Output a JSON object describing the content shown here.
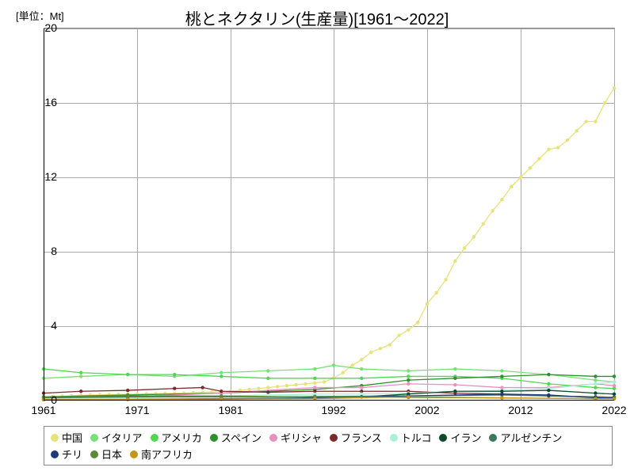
{
  "chart": {
    "type": "line",
    "title": "桃とネクタリン(生産量)[1961～2022]",
    "title_fontsize": 20,
    "unit_label": "[単位：Mt]",
    "label_fontsize": 13,
    "tick_fontsize": 14,
    "background_color": "#ffffff",
    "grid_color": "#aaaaaa",
    "xlim": [
      1961,
      2022
    ],
    "ylim": [
      0,
      20
    ],
    "yticks": [
      0,
      4,
      8,
      12,
      16,
      20
    ],
    "xticks": [
      1961,
      1971,
      1981,
      1992,
      2002,
      2012,
      2022
    ],
    "marker_radius": 2.2,
    "line_width": 1.3,
    "legend_fontsize": 13,
    "series": [
      {
        "name": "中国",
        "color": "#e8e27a",
        "data": [
          [
            1961,
            0.2
          ],
          [
            1962,
            0.22
          ],
          [
            1963,
            0.24
          ],
          [
            1964,
            0.26
          ],
          [
            1965,
            0.28
          ],
          [
            1966,
            0.3
          ],
          [
            1967,
            0.31
          ],
          [
            1968,
            0.32
          ],
          [
            1969,
            0.33
          ],
          [
            1970,
            0.34
          ],
          [
            1971,
            0.35
          ],
          [
            1972,
            0.36
          ],
          [
            1973,
            0.37
          ],
          [
            1974,
            0.38
          ],
          [
            1975,
            0.39
          ],
          [
            1976,
            0.4
          ],
          [
            1977,
            0.42
          ],
          [
            1978,
            0.44
          ],
          [
            1979,
            0.46
          ],
          [
            1980,
            0.48
          ],
          [
            1981,
            0.5
          ],
          [
            1982,
            0.55
          ],
          [
            1983,
            0.6
          ],
          [
            1984,
            0.65
          ],
          [
            1985,
            0.7
          ],
          [
            1986,
            0.75
          ],
          [
            1987,
            0.8
          ],
          [
            1988,
            0.85
          ],
          [
            1989,
            0.9
          ],
          [
            1990,
            0.95
          ],
          [
            1991,
            1.0
          ],
          [
            1992,
            1.2
          ],
          [
            1993,
            1.5
          ],
          [
            1994,
            1.9
          ],
          [
            1995,
            2.2
          ],
          [
            1996,
            2.6
          ],
          [
            1997,
            2.8
          ],
          [
            1998,
            3.0
          ],
          [
            1999,
            3.5
          ],
          [
            2000,
            3.8
          ],
          [
            2001,
            4.2
          ],
          [
            2002,
            5.2
          ],
          [
            2003,
            5.8
          ],
          [
            2004,
            6.5
          ],
          [
            2005,
            7.5
          ],
          [
            2006,
            8.2
          ],
          [
            2007,
            8.8
          ],
          [
            2008,
            9.5
          ],
          [
            2009,
            10.2
          ],
          [
            2010,
            10.8
          ],
          [
            2011,
            11.5
          ],
          [
            2012,
            12.0
          ],
          [
            2013,
            12.5
          ],
          [
            2014,
            13.0
          ],
          [
            2015,
            13.5
          ],
          [
            2016,
            13.6
          ],
          [
            2017,
            14.0
          ],
          [
            2018,
            14.5
          ],
          [
            2019,
            15.0
          ],
          [
            2020,
            15.0
          ],
          [
            2021,
            16.0
          ],
          [
            2022,
            16.8
          ]
        ]
      },
      {
        "name": "イタリア",
        "color": "#78e078",
        "data": [
          [
            1961,
            1.2
          ],
          [
            1965,
            1.3
          ],
          [
            1970,
            1.4
          ],
          [
            1975,
            1.3
          ],
          [
            1980,
            1.5
          ],
          [
            1985,
            1.6
          ],
          [
            1990,
            1.7
          ],
          [
            1992,
            1.9
          ],
          [
            1995,
            1.7
          ],
          [
            2000,
            1.6
          ],
          [
            2005,
            1.7
          ],
          [
            2010,
            1.6
          ],
          [
            2015,
            1.4
          ],
          [
            2020,
            1.1
          ],
          [
            2022,
            1.0
          ]
        ]
      },
      {
        "name": "アメリカ",
        "color": "#4fd84f",
        "data": [
          [
            1961,
            1.7
          ],
          [
            1965,
            1.5
          ],
          [
            1970,
            1.4
          ],
          [
            1975,
            1.4
          ],
          [
            1980,
            1.3
          ],
          [
            1985,
            1.2
          ],
          [
            1990,
            1.2
          ],
          [
            1995,
            1.2
          ],
          [
            2000,
            1.3
          ],
          [
            2005,
            1.3
          ],
          [
            2010,
            1.2
          ],
          [
            2015,
            0.9
          ],
          [
            2020,
            0.7
          ],
          [
            2022,
            0.65
          ]
        ]
      },
      {
        "name": "スペイン",
        "color": "#2d8f2d",
        "data": [
          [
            1961,
            0.2
          ],
          [
            1970,
            0.3
          ],
          [
            1980,
            0.4
          ],
          [
            1990,
            0.6
          ],
          [
            1995,
            0.8
          ],
          [
            2000,
            1.1
          ],
          [
            2005,
            1.2
          ],
          [
            2010,
            1.3
          ],
          [
            2015,
            1.4
          ],
          [
            2020,
            1.3
          ],
          [
            2022,
            1.3
          ]
        ]
      },
      {
        "name": "ギリシャ",
        "color": "#e890c0",
        "data": [
          [
            1961,
            0.15
          ],
          [
            1970,
            0.2
          ],
          [
            1980,
            0.4
          ],
          [
            1990,
            0.7
          ],
          [
            1995,
            0.7
          ],
          [
            2000,
            0.9
          ],
          [
            2005,
            0.85
          ],
          [
            2010,
            0.7
          ],
          [
            2015,
            0.7
          ],
          [
            2020,
            0.9
          ],
          [
            2022,
            0.8
          ]
        ]
      },
      {
        "name": "フランス",
        "color": "#7a2a2a",
        "data": [
          [
            1961,
            0.4
          ],
          [
            1965,
            0.5
          ],
          [
            1970,
            0.55
          ],
          [
            1975,
            0.65
          ],
          [
            1978,
            0.7
          ],
          [
            1980,
            0.5
          ],
          [
            1985,
            0.45
          ],
          [
            1990,
            0.5
          ],
          [
            1995,
            0.5
          ],
          [
            2000,
            0.5
          ],
          [
            2005,
            0.4
          ],
          [
            2010,
            0.35
          ],
          [
            2015,
            0.25
          ],
          [
            2020,
            0.2
          ],
          [
            2022,
            0.18
          ]
        ]
      },
      {
        "name": "トルコ",
        "color": "#a8f0d8",
        "data": [
          [
            1961,
            0.1
          ],
          [
            1970,
            0.15
          ],
          [
            1980,
            0.25
          ],
          [
            1990,
            0.35
          ],
          [
            1995,
            0.35
          ],
          [
            2000,
            0.4
          ],
          [
            2005,
            0.5
          ],
          [
            2010,
            0.55
          ],
          [
            2015,
            0.65
          ],
          [
            2020,
            0.9
          ],
          [
            2022,
            1.0
          ]
        ]
      },
      {
        "name": "イラン",
        "color": "#0a4a2a",
        "data": [
          [
            1961,
            0.05
          ],
          [
            1970,
            0.07
          ],
          [
            1980,
            0.1
          ],
          [
            1990,
            0.15
          ],
          [
            1995,
            0.2
          ],
          [
            2000,
            0.35
          ],
          [
            2005,
            0.5
          ],
          [
            2010,
            0.5
          ],
          [
            2015,
            0.55
          ],
          [
            2020,
            0.4
          ],
          [
            2022,
            0.35
          ]
        ]
      },
      {
        "name": "アルゼンチン",
        "color": "#3a7a5a",
        "data": [
          [
            1961,
            0.15
          ],
          [
            1970,
            0.2
          ],
          [
            1980,
            0.2
          ],
          [
            1990,
            0.22
          ],
          [
            2000,
            0.25
          ],
          [
            2010,
            0.3
          ],
          [
            2020,
            0.2
          ],
          [
            2022,
            0.18
          ]
        ]
      },
      {
        "name": "チリ",
        "color": "#1a3a7a",
        "data": [
          [
            1961,
            0.05
          ],
          [
            1970,
            0.06
          ],
          [
            1980,
            0.08
          ],
          [
            1990,
            0.12
          ],
          [
            2000,
            0.25
          ],
          [
            2010,
            0.35
          ],
          [
            2015,
            0.3
          ],
          [
            2020,
            0.15
          ],
          [
            2022,
            0.12
          ]
        ]
      },
      {
        "name": "日本",
        "color": "#5a8a3a",
        "data": [
          [
            1961,
            0.2
          ],
          [
            1970,
            0.25
          ],
          [
            1980,
            0.25
          ],
          [
            1990,
            0.2
          ],
          [
            2000,
            0.17
          ],
          [
            2010,
            0.14
          ],
          [
            2020,
            0.1
          ],
          [
            2022,
            0.1
          ]
        ]
      },
      {
        "name": "南アフリカ",
        "color": "#c4951a",
        "data": [
          [
            1961,
            0.05
          ],
          [
            1970,
            0.06
          ],
          [
            1980,
            0.08
          ],
          [
            1990,
            0.1
          ],
          [
            2000,
            0.2
          ],
          [
            2010,
            0.15
          ],
          [
            2020,
            0.1
          ],
          [
            2022,
            0.1
          ]
        ]
      }
    ]
  }
}
